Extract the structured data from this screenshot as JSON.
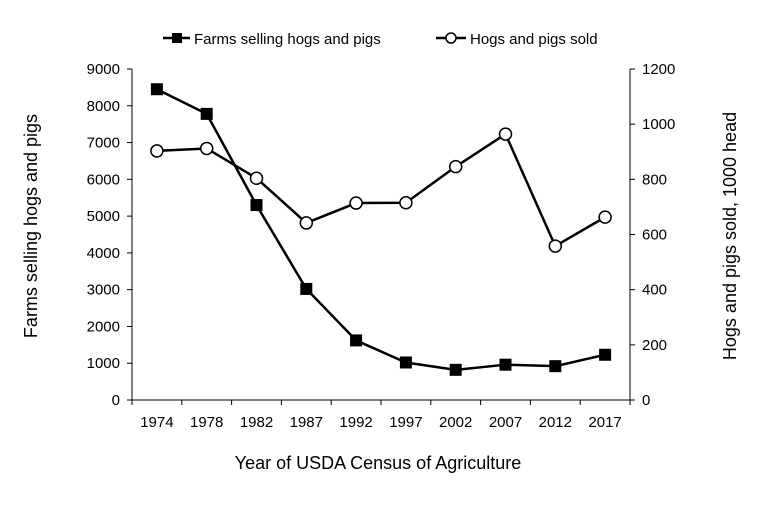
{
  "chart_data": {
    "type": "line",
    "categories": [
      "1974",
      "1978",
      "1982",
      "1987",
      "1992",
      "1997",
      "2002",
      "2007",
      "2012",
      "2017"
    ],
    "xlabel": "Year of USDA Census of Agriculture",
    "ylabel": "Farms selling hogs and pigs",
    "y2label": "Hogs and pigs sold, 1000 head",
    "ylim": [
      0,
      9000
    ],
    "y2lim": [
      0,
      1200
    ],
    "yticks": [
      "0",
      "1000",
      "2000",
      "3000",
      "4000",
      "5000",
      "6000",
      "7000",
      "8000",
      "9000"
    ],
    "y2ticks": [
      "0",
      "200",
      "400",
      "600",
      "800",
      "1000",
      "1200"
    ],
    "legend_position": "top",
    "grid": false,
    "series": [
      {
        "name": "Farms selling hogs and pigs",
        "axis": "left",
        "marker": "filled-square",
        "values": [
          8450,
          7780,
          5300,
          3020,
          1620,
          1020,
          820,
          960,
          920,
          1230
        ]
      },
      {
        "name": "Hogs and pigs sold",
        "axis": "right",
        "marker": "open-circle",
        "values": [
          903,
          912,
          804,
          642,
          714,
          715,
          846,
          964,
          558,
          663
        ]
      }
    ]
  }
}
